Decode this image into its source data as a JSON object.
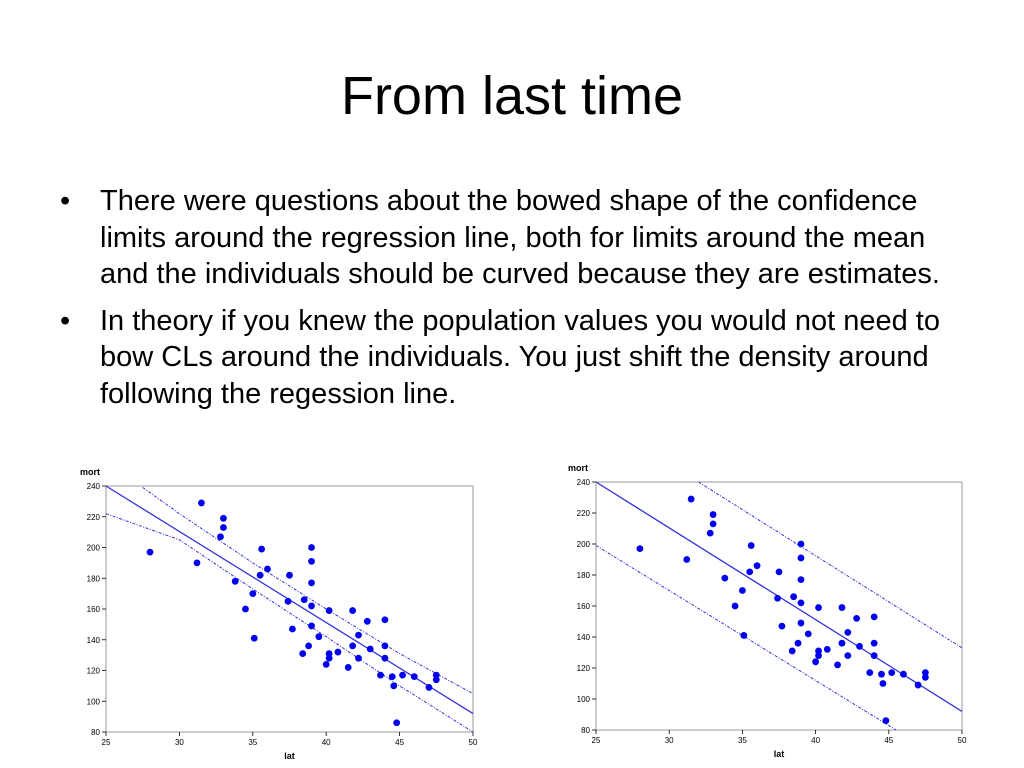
{
  "slide": {
    "title": "From last time",
    "bullets": [
      "There were questions about the bowed shape of the confidence limits around the regression line, both for limits around the mean and the individuals should be curved because they are estimates.",
      "In theory if you knew the population values you would not need to bow CLs around the individuals.  You just shift the density around following the regession line."
    ],
    "bullet_symbol": "•"
  },
  "colors": {
    "points": "#0000ee",
    "lines": "#3333dd",
    "axis": "#000000",
    "frame": "#999999"
  },
  "chart_data": [
    {
      "type": "scatter",
      "title": "",
      "xlabel": "lat",
      "ylabel": "mort",
      "xlim": [
        25,
        50
      ],
      "ylim": [
        80,
        240
      ],
      "xticks": [
        25,
        30,
        35,
        40,
        45,
        50
      ],
      "yticks": [
        80,
        100,
        120,
        140,
        160,
        180,
        200,
        220,
        240
      ],
      "grid": false,
      "points": [
        [
          28,
          197
        ],
        [
          31.2,
          190
        ],
        [
          31.5,
          229
        ],
        [
          32.8,
          207
        ],
        [
          33,
          213
        ],
        [
          33,
          219
        ],
        [
          33.8,
          178
        ],
        [
          34.5,
          160
        ],
        [
          35,
          170
        ],
        [
          35.1,
          141
        ],
        [
          35.5,
          182
        ],
        [
          35.6,
          199
        ],
        [
          36,
          186
        ],
        [
          37.4,
          165
        ],
        [
          37.5,
          182
        ],
        [
          37.7,
          147
        ],
        [
          38.4,
          131
        ],
        [
          38.5,
          166
        ],
        [
          38.8,
          136
        ],
        [
          39,
          149
        ],
        [
          39,
          162
        ],
        [
          39,
          177
        ],
        [
          39,
          191
        ],
        [
          39,
          200
        ],
        [
          39.5,
          142
        ],
        [
          40,
          124
        ],
        [
          40.2,
          128
        ],
        [
          40.2,
          131
        ],
        [
          40.2,
          159
        ],
        [
          40.8,
          132
        ],
        [
          41.5,
          122
        ],
        [
          41.8,
          136
        ],
        [
          41.8,
          159
        ],
        [
          42.2,
          143
        ],
        [
          42.2,
          128
        ],
        [
          42.8,
          152
        ],
        [
          43,
          134
        ],
        [
          43.7,
          117
        ],
        [
          44,
          128
        ],
        [
          44,
          136
        ],
        [
          44,
          153
        ],
        [
          44.5,
          116
        ],
        [
          44.6,
          110
        ],
        [
          44.8,
          86
        ],
        [
          45.2,
          117
        ],
        [
          46,
          116
        ],
        [
          47,
          109
        ],
        [
          47.5,
          114
        ],
        [
          47.5,
          117
        ]
      ],
      "regression_line": {
        "x": [
          25,
          50
        ],
        "y": [
          240,
          92
        ]
      },
      "band_type": "mean",
      "upper_band": {
        "x": [
          27.5,
          30,
          35,
          40,
          45,
          50
        ],
        "y": [
          239,
          222,
          190,
          160,
          131,
          105
        ]
      },
      "lower_band": {
        "x": [
          25,
          30,
          35,
          40,
          45,
          50
        ],
        "y": [
          222,
          205,
          173,
          142,
          110,
          80
        ]
      }
    },
    {
      "type": "scatter",
      "title": "",
      "xlabel": "lat",
      "ylabel": "mort",
      "xlim": [
        25,
        50
      ],
      "ylim": [
        80,
        240
      ],
      "xticks": [
        25,
        30,
        35,
        40,
        45,
        50
      ],
      "yticks": [
        80,
        100,
        120,
        140,
        160,
        180,
        200,
        220,
        240
      ],
      "grid": false,
      "points": [
        [
          28,
          197
        ],
        [
          31.2,
          190
        ],
        [
          31.5,
          229
        ],
        [
          32.8,
          207
        ],
        [
          33,
          213
        ],
        [
          33,
          219
        ],
        [
          33.8,
          178
        ],
        [
          34.5,
          160
        ],
        [
          35,
          170
        ],
        [
          35.1,
          141
        ],
        [
          35.5,
          182
        ],
        [
          35.6,
          199
        ],
        [
          36,
          186
        ],
        [
          37.4,
          165
        ],
        [
          37.5,
          182
        ],
        [
          37.7,
          147
        ],
        [
          38.4,
          131
        ],
        [
          38.5,
          166
        ],
        [
          38.8,
          136
        ],
        [
          39,
          149
        ],
        [
          39,
          162
        ],
        [
          39,
          177
        ],
        [
          39,
          191
        ],
        [
          39,
          200
        ],
        [
          39.5,
          142
        ],
        [
          40,
          124
        ],
        [
          40.2,
          128
        ],
        [
          40.2,
          131
        ],
        [
          40.2,
          159
        ],
        [
          40.8,
          132
        ],
        [
          41.5,
          122
        ],
        [
          41.8,
          136
        ],
        [
          41.8,
          159
        ],
        [
          42.2,
          143
        ],
        [
          42.2,
          128
        ],
        [
          42.8,
          152
        ],
        [
          43,
          134
        ],
        [
          43.7,
          117
        ],
        [
          44,
          128
        ],
        [
          44,
          136
        ],
        [
          44,
          153
        ],
        [
          44.5,
          116
        ],
        [
          44.6,
          110
        ],
        [
          44.8,
          86
        ],
        [
          45.2,
          117
        ],
        [
          46,
          116
        ],
        [
          47,
          109
        ],
        [
          47.5,
          114
        ],
        [
          47.5,
          117
        ]
      ],
      "regression_line": {
        "x": [
          25,
          50
        ],
        "y": [
          240,
          92
        ]
      },
      "band_type": "individual",
      "upper_band": {
        "x": [
          32,
          50
        ],
        "y": [
          240,
          133
        ]
      },
      "lower_band": {
        "x": [
          25,
          45.5
        ],
        "y": [
          199,
          80
        ]
      }
    }
  ]
}
